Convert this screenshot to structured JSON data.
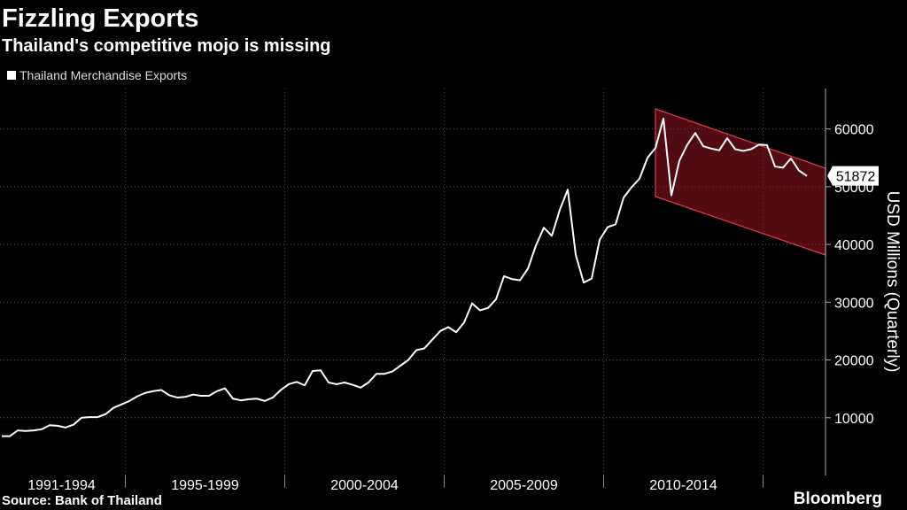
{
  "chart_data": {
    "type": "line",
    "title": "Fizzling Exports",
    "subtitle": "Thailand's competitive mojo is missing",
    "source": "Source: Bank of Thailand",
    "brand": "Bloomberg",
    "y_axis_label": "USD Millions (Quarterly)",
    "ylim": [
      0,
      67000
    ],
    "yticks": [
      {
        "value": 10000,
        "label": "10000"
      },
      {
        "value": 20000,
        "label": "20000"
      },
      {
        "value": 30000,
        "label": "30000"
      },
      {
        "value": 40000,
        "label": "40000"
      },
      {
        "value": 50000,
        "label": "50000"
      },
      {
        "value": 60000,
        "label": "60000"
      }
    ],
    "grid": true,
    "categories": [
      "1991-1994",
      "1991-1994",
      "1991-1994",
      "1991-1994",
      "1991-1994",
      "1991-1994",
      "1991-1994",
      "1991-1994",
      "1991-1994",
      "1991-1994",
      "1991-1994",
      "1991-1994",
      "1991-1994",
      "1991-1994",
      "1991-1994",
      "1991-1994",
      "1995-1999",
      "1995-1999",
      "1995-1999",
      "1995-1999",
      "1995-1999",
      "1995-1999",
      "1995-1999",
      "1995-1999",
      "1995-1999",
      "1995-1999",
      "1995-1999",
      "1995-1999",
      "1995-1999",
      "1995-1999",
      "1995-1999",
      "1995-1999",
      "1995-1999",
      "1995-1999",
      "1995-1999",
      "1995-1999",
      "2000-2004",
      "2000-2004",
      "2000-2004",
      "2000-2004",
      "2000-2004",
      "2000-2004",
      "2000-2004",
      "2000-2004",
      "2000-2004",
      "2000-2004",
      "2000-2004",
      "2000-2004",
      "2000-2004",
      "2000-2004",
      "2000-2004",
      "2000-2004",
      "2000-2004",
      "2000-2004",
      "2000-2004",
      "2000-2004",
      "2005-2009",
      "2005-2009",
      "2005-2009",
      "2005-2009",
      "2005-2009",
      "2005-2009",
      "2005-2009",
      "2005-2009",
      "2005-2009",
      "2005-2009",
      "2005-2009",
      "2005-2009",
      "2005-2009",
      "2005-2009",
      "2005-2009",
      "2005-2009",
      "2005-2009",
      "2005-2009",
      "2005-2009",
      "2005-2009",
      "2010-2014",
      "2010-2014",
      "2010-2014",
      "2010-2014",
      "2010-2014",
      "2010-2014",
      "2010-2014",
      "2010-2014",
      "2010-2014",
      "2010-2014",
      "2010-2014",
      "2010-2014",
      "2010-2014",
      "2010-2014",
      "2010-2014",
      "2010-2014",
      "2010-2014",
      "2010-2014",
      "2010-2014",
      "2010-2014",
      null,
      null,
      null,
      null,
      null,
      null
    ],
    "series": [
      {
        "name": "Thailand Merchandise Exports",
        "color": "#ffffff",
        "values": [
          6800,
          6800,
          7800,
          7700,
          7800,
          8000,
          8700,
          8600,
          8300,
          8800,
          10000,
          10100,
          10100,
          10600,
          11700,
          12300,
          12900,
          13700,
          14300,
          14600,
          14800,
          13900,
          13500,
          13600,
          14000,
          13800,
          13800,
          14600,
          15100,
          13300,
          13000,
          13200,
          13300,
          12900,
          13500,
          14800,
          15800,
          16200,
          15600,
          18100,
          18200,
          16100,
          15800,
          16100,
          15700,
          15200,
          16100,
          17600,
          17600,
          18000,
          19000,
          20000,
          21700,
          22000,
          23500,
          25000,
          25700,
          24800,
          26500,
          29800,
          28600,
          29000,
          30500,
          34500,
          34000,
          33800,
          35800,
          39800,
          42900,
          41500,
          46000,
          49500,
          38200,
          33400,
          34100,
          40800,
          43000,
          43500,
          48100,
          49900,
          51400,
          55000,
          56700,
          61800,
          48500,
          54500,
          57300,
          59300,
          57000,
          56600,
          56300,
          58400,
          56500,
          56200,
          56500,
          57300,
          57200,
          53500,
          53300,
          54900,
          52800,
          51872
        ]
      }
    ]
  }
}
